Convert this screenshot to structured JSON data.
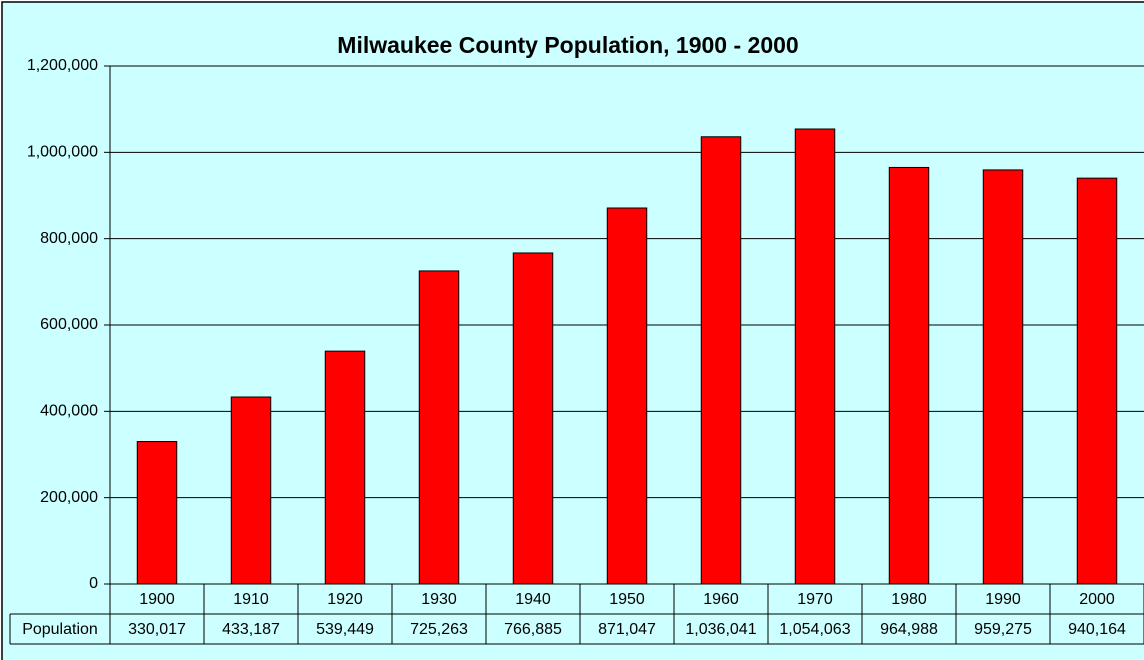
{
  "chart_data": {
    "type": "bar",
    "title": "Milwaukee County Population, 1900 - 2000",
    "categories": [
      "1900",
      "1910",
      "1920",
      "1930",
      "1940",
      "1950",
      "1960",
      "1970",
      "1980",
      "1990",
      "2000"
    ],
    "series": [
      {
        "name": "Population",
        "color": "#ff0000",
        "values": [
          330017,
          433187,
          539449,
          725263,
          766885,
          871047,
          1036041,
          1054063,
          964988,
          959275,
          940164
        ],
        "value_labels": [
          "330,017",
          "433,187",
          "539,449",
          "725,263",
          "766,885",
          "871,047",
          "1,036,041",
          "1,054,063",
          "964,988",
          "959,275",
          "940,164"
        ]
      }
    ],
    "ylim": [
      0,
      1200000
    ],
    "yticks": [
      0,
      {
        "value": 200000,
        "label": "200,000"
      },
      {
        "value": 400000,
        "label": "400,000"
      },
      {
        "value": 600000,
        "label": "600,000"
      },
      {
        "value": 800000,
        "label": "800,000"
      },
      {
        "value": 1000000,
        "label": "1,000,000"
      },
      {
        "value": 1200000,
        "label": "1,200,000"
      }
    ],
    "grid": true,
    "background": "#ccffff"
  }
}
